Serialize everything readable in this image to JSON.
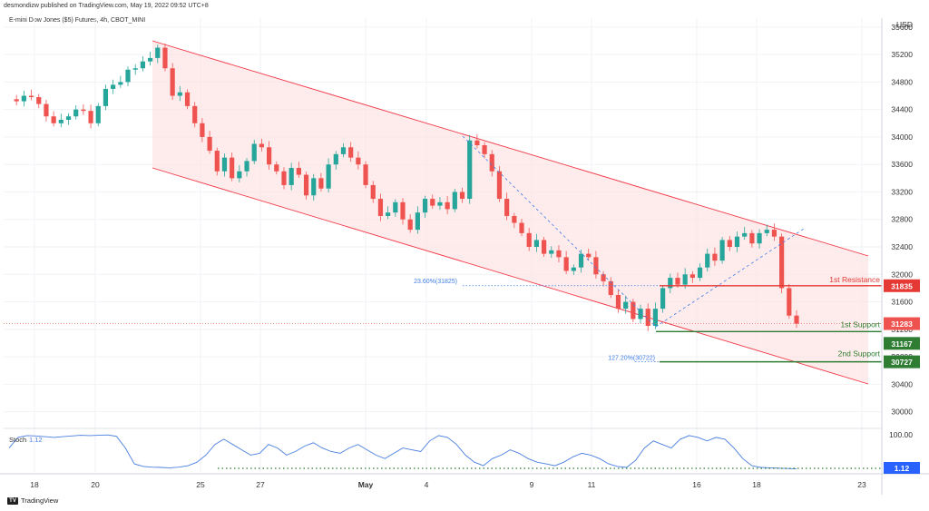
{
  "header": {
    "publisher": "desmondizw published on TradingView.com, May 19, 2022 09:52 UTC+8"
  },
  "symbol": {
    "title": "E-mini Dow Jones ($5) Futures, 4h, CBOT_MINI"
  },
  "footer": {
    "brand": "TradingView"
  },
  "colors": {
    "up": "#26a69a",
    "down": "#ef5350",
    "channel": "#f23645",
    "channel_fill": "#fde3e3",
    "support": "#2e7d32",
    "resistance": "#e53935",
    "stoch": "#4a7fe0",
    "fib": "#3f7ee8"
  },
  "chart_data": {
    "type": "candlestick",
    "currency": "USD",
    "y_ticks": [
      30000,
      30400,
      30800,
      31200,
      31600,
      32000,
      32400,
      32800,
      33200,
      33600,
      34000,
      34400,
      34800,
      35200,
      35600
    ],
    "y_range": [
      29850,
      35730
    ],
    "x_ticks": [
      "18",
      "20",
      "25",
      "27",
      "May",
      "4",
      "9",
      "11",
      "16",
      "18",
      "23"
    ],
    "close_series": [
      34550,
      34520,
      34600,
      34580,
      34480,
      34300,
      34200,
      34250,
      34300,
      34400,
      34380,
      34200,
      34450,
      34700,
      34760,
      34800,
      34980,
      35000,
      35100,
      35150,
      35300,
      35000,
      34600,
      34650,
      34450,
      34200,
      34000,
      33800,
      33500,
      33700,
      33400,
      33500,
      33650,
      33900,
      33850,
      33600,
      33500,
      33300,
      33550,
      33450,
      33150,
      33400,
      33250,
      33600,
      33750,
      33850,
      33700,
      33600,
      33300,
      33100,
      32850,
      32900,
      33050,
      32800,
      32650,
      32900,
      33100,
      33000,
      33050,
      32950,
      33200,
      33100,
      33950,
      33880,
      33750,
      33500,
      33100,
      32850,
      32750,
      32600,
      32400,
      32500,
      32300,
      32350,
      32250,
      32050,
      32100,
      32300,
      32250,
      32000,
      31900,
      31700,
      31500,
      31600,
      31350,
      31500,
      31250,
      31500,
      31800,
      31950,
      31850,
      32000,
      31950,
      32100,
      32300,
      32200,
      32500,
      32400,
      32550,
      32600,
      32450,
      32600,
      32650,
      32550,
      31800,
      31400,
      31283
    ],
    "stoch_series": [
      60,
      90,
      95,
      94,
      92,
      90,
      92,
      94,
      96,
      95,
      96,
      97,
      93,
      60,
      15,
      8,
      6,
      5,
      4,
      6,
      10,
      20,
      40,
      70,
      85,
      70,
      55,
      40,
      45,
      70,
      60,
      40,
      50,
      65,
      75,
      60,
      50,
      45,
      60,
      70,
      55,
      40,
      30,
      45,
      60,
      55,
      50,
      80,
      95,
      90,
      70,
      40,
      20,
      10,
      30,
      40,
      55,
      45,
      30,
      20,
      15,
      10,
      20,
      35,
      45,
      40,
      30,
      15,
      8,
      5,
      25,
      60,
      80,
      70,
      60,
      85,
      95,
      90,
      80,
      90,
      85,
      60,
      30,
      10,
      5,
      4,
      3,
      2,
      1.12
    ],
    "annotations": {
      "resistance_label": "1st Resistance",
      "resistance_value": "31835",
      "support1_label": "1st Support",
      "support1_value": "31167",
      "support2_label": "2nd Support",
      "support2_value": "30727",
      "current_price": "31283",
      "fib1": "23.60%(31825)",
      "fib2": "127.20%(30722)"
    },
    "stoch": {
      "label": "Stoch",
      "value": "1.12",
      "scale_top": "100.00",
      "scale_value": "1.12"
    }
  }
}
